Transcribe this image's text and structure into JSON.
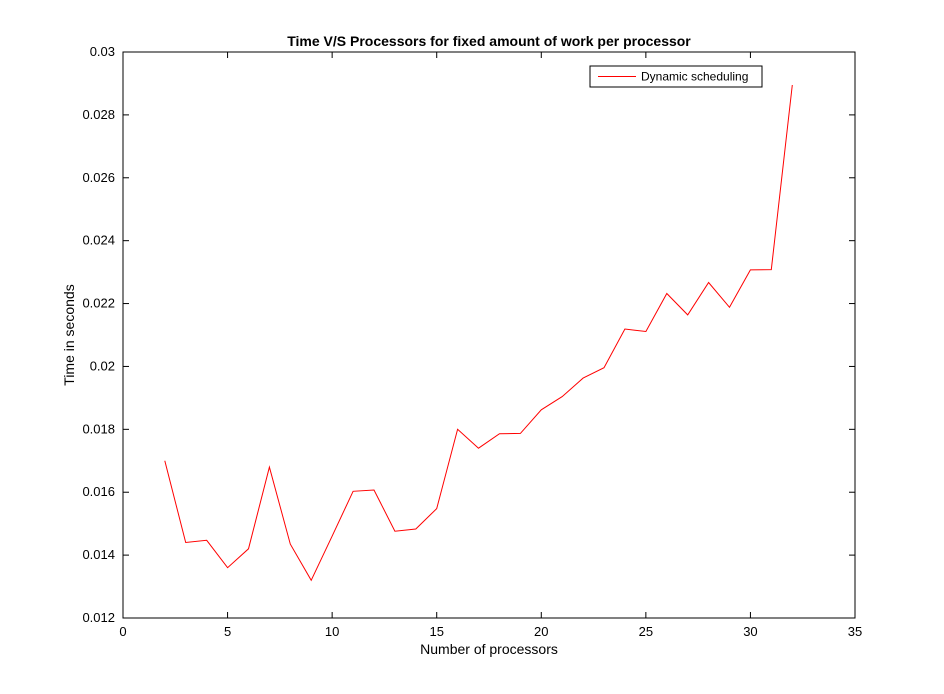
{
  "chart_data": {
    "type": "line",
    "title": "Time V/S Processors for fixed amount of work per processor",
    "xlabel": "Number of processors",
    "ylabel": "Time in seconds",
    "xlim": [
      0,
      35
    ],
    "ylim": [
      0.012,
      0.03
    ],
    "xticks": [
      0,
      5,
      10,
      15,
      20,
      25,
      30,
      35
    ],
    "xtick_labels": [
      "0",
      "5",
      "10",
      "15",
      "20",
      "25",
      "30",
      "35"
    ],
    "yticks": [
      0.012,
      0.014,
      0.016,
      0.018,
      0.02,
      0.022,
      0.024,
      0.026,
      0.028,
      0.03
    ],
    "ytick_labels": [
      "0.012",
      "0.014",
      "0.016",
      "0.018",
      "0.02",
      "0.022",
      "0.024",
      "0.026",
      "0.028",
      "0.03"
    ],
    "grid": false,
    "legend_position": "top-right",
    "series": [
      {
        "name": "Dynamic scheduling",
        "color": "#ff0000",
        "x": [
          2,
          3,
          4,
          5,
          6,
          7,
          8,
          9,
          10,
          11,
          12,
          13,
          14,
          15,
          16,
          17,
          18,
          19,
          20,
          21,
          22,
          23,
          24,
          25,
          26,
          27,
          28,
          29,
          30,
          31,
          32
        ],
        "y": [
          0.017,
          0.0144,
          0.01447,
          0.0136,
          0.0142,
          0.0168,
          0.01435,
          0.0132,
          0.0146,
          0.01603,
          0.01607,
          0.01476,
          0.01483,
          0.01548,
          0.018,
          0.0174,
          0.01786,
          0.01787,
          0.01862,
          0.01904,
          0.01963,
          0.01996,
          0.02119,
          0.02111,
          0.02232,
          0.02164,
          0.02267,
          0.02188,
          0.02307,
          0.02308,
          0.02895
        ]
      }
    ]
  }
}
